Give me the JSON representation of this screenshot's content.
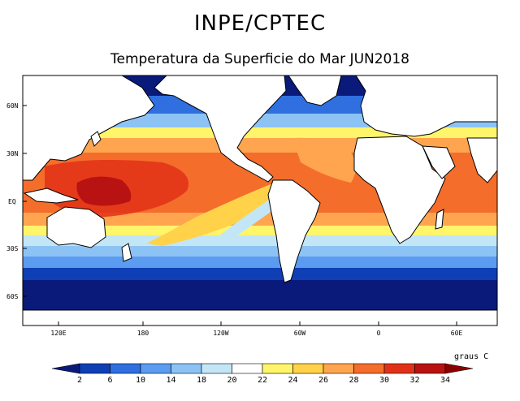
{
  "header": {
    "title": "INPE/CPTEC",
    "subtitle": "Temperatura da Superficie do Mar JUN2018"
  },
  "map": {
    "lat_labels": [
      "60N",
      "30N",
      "EQ",
      "30S",
      "60S"
    ],
    "lon_labels": [
      "120E",
      "180",
      "120W",
      "60W",
      "0",
      "60E"
    ],
    "land_color": "#ffffff",
    "coast_color": "#000000"
  },
  "legend": {
    "units": "graus C",
    "thresholds": [
      "2",
      "6",
      "10",
      "14",
      "18",
      "20",
      "22",
      "24",
      "26",
      "28",
      "30",
      "32",
      "34"
    ],
    "colors": [
      "#0a1a7a",
      "#0f3fb4",
      "#2f6fe0",
      "#5b9cf0",
      "#8cc3f4",
      "#c3e6f7",
      "#ffffff",
      "#fff56b",
      "#ffd24a",
      "#ffa54f",
      "#f46d2b",
      "#e03118",
      "#b81212",
      "#8c0000"
    ]
  }
}
